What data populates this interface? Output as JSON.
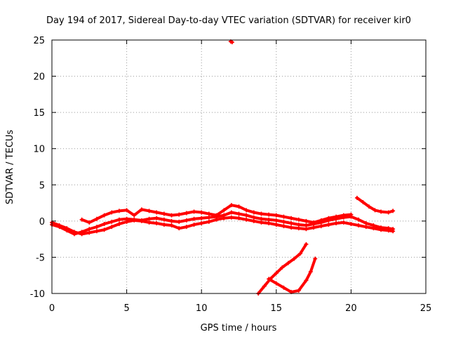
{
  "chart_data": {
    "type": "scatter",
    "title": "Day 194 of 2017, Sidereal Day-to-day VTEC variation (SDTVAR) for receiver kir0",
    "xlabel": "GPS time / hours",
    "ylabel": "SDTVAR / TECUs",
    "xlim": [
      0,
      25
    ],
    "ylim": [
      -10,
      25
    ],
    "xticks": [
      0,
      5,
      10,
      15,
      20,
      25
    ],
    "yticks": [
      -10,
      -5,
      0,
      5,
      10,
      15,
      20,
      25
    ],
    "grid": true,
    "legend": "none",
    "color": "#ff0000",
    "series": [
      {
        "values": [
          [
            0,
            -0.5
          ],
          [
            0.5,
            -0.8
          ],
          [
            1,
            -1.3
          ],
          [
            1.5,
            -1.8
          ],
          [
            2,
            -1.5
          ],
          [
            2.5,
            -1.1
          ],
          [
            3,
            -0.8
          ],
          [
            3.5,
            -0.4
          ],
          [
            4,
            -0.1
          ],
          [
            4.5,
            0.2
          ],
          [
            5,
            0.3
          ],
          [
            5.5,
            0.2
          ],
          [
            6,
            0.1
          ],
          [
            6.5,
            0.3
          ],
          [
            7,
            0.4
          ],
          [
            7.5,
            0.2
          ],
          [
            8,
            0.0
          ],
          [
            8.5,
            -0.1
          ],
          [
            9,
            0.1
          ],
          [
            9.5,
            0.3
          ],
          [
            10,
            0.4
          ],
          [
            10.5,
            0.5
          ],
          [
            11,
            0.6
          ],
          [
            11.5,
            0.8
          ],
          [
            12,
            1.2
          ],
          [
            12.5,
            1.0
          ],
          [
            13,
            0.8
          ],
          [
            13.5,
            0.5
          ],
          [
            14,
            0.3
          ],
          [
            14.5,
            0.2
          ],
          [
            15,
            0.1
          ],
          [
            15.5,
            -0.1
          ],
          [
            16,
            -0.3
          ],
          [
            16.5,
            -0.5
          ],
          [
            17,
            -0.6
          ],
          [
            17.5,
            -0.4
          ],
          [
            18,
            -0.2
          ],
          [
            18.5,
            0.1
          ],
          [
            19,
            0.3
          ],
          [
            19.5,
            0.5
          ],
          [
            20,
            0.6
          ],
          [
            20.5,
            0.2
          ],
          [
            21,
            -0.3
          ],
          [
            21.5,
            -0.6
          ],
          [
            22,
            -0.9
          ],
          [
            22.5,
            -1.0
          ],
          [
            22.8,
            -1.1
          ]
        ]
      },
      {
        "values": [
          [
            0,
            -0.2
          ],
          [
            0.5,
            -0.6
          ],
          [
            1,
            -1.0
          ],
          [
            1.5,
            -1.5
          ],
          [
            2,
            -1.8
          ],
          [
            2.5,
            -1.6
          ],
          [
            3,
            -1.4
          ],
          [
            3.5,
            -1.2
          ],
          [
            4,
            -0.8
          ],
          [
            4.5,
            -0.4
          ],
          [
            5,
            -0.1
          ],
          [
            5.5,
            0.1
          ],
          [
            6,
            0.0
          ],
          [
            6.5,
            -0.2
          ],
          [
            7,
            -0.3
          ],
          [
            7.5,
            -0.5
          ],
          [
            8,
            -0.6
          ],
          [
            8.5,
            -1.0
          ],
          [
            9,
            -0.8
          ],
          [
            9.5,
            -0.5
          ],
          [
            10,
            -0.3
          ],
          [
            10.5,
            -0.1
          ],
          [
            11,
            0.2
          ],
          [
            11.5,
            0.4
          ],
          [
            12,
            0.5
          ],
          [
            12.5,
            0.4
          ],
          [
            13,
            0.2
          ],
          [
            13.5,
            0.0
          ],
          [
            14,
            -0.2
          ],
          [
            14.5,
            -0.3
          ],
          [
            15,
            -0.5
          ],
          [
            15.5,
            -0.7
          ],
          [
            16,
            -0.9
          ],
          [
            16.5,
            -1.0
          ],
          [
            17,
            -1.1
          ],
          [
            17.5,
            -0.9
          ],
          [
            18,
            -0.7
          ],
          [
            18.5,
            -0.5
          ],
          [
            19,
            -0.3
          ],
          [
            19.5,
            -0.2
          ],
          [
            20,
            -0.4
          ],
          [
            20.5,
            -0.6
          ],
          [
            21,
            -0.8
          ],
          [
            21.5,
            -1.0
          ],
          [
            22,
            -1.2
          ],
          [
            22.5,
            -1.3
          ],
          [
            22.8,
            -1.4
          ]
        ]
      },
      {
        "values": [
          [
            2,
            0.2
          ],
          [
            2.5,
            -0.2
          ],
          [
            3,
            0.3
          ],
          [
            3.5,
            0.8
          ],
          [
            4,
            1.2
          ],
          [
            4.5,
            1.4
          ],
          [
            5,
            1.5
          ],
          [
            5.5,
            0.8
          ],
          [
            6,
            1.6
          ],
          [
            6.5,
            1.4
          ],
          [
            7,
            1.2
          ],
          [
            7.5,
            1.0
          ],
          [
            8,
            0.8
          ],
          [
            8.5,
            0.9
          ],
          [
            9,
            1.1
          ],
          [
            9.5,
            1.3
          ],
          [
            10,
            1.2
          ],
          [
            10.5,
            1.0
          ],
          [
            11,
            0.8
          ],
          [
            11.5,
            1.5
          ],
          [
            12,
            2.2
          ],
          [
            12.5,
            2.0
          ],
          [
            13,
            1.5
          ],
          [
            13.5,
            1.2
          ],
          [
            14,
            1.0
          ],
          [
            14.5,
            0.9
          ],
          [
            15,
            0.8
          ],
          [
            15.5,
            0.6
          ],
          [
            16,
            0.4
          ],
          [
            16.5,
            0.2
          ],
          [
            17,
            0.0
          ],
          [
            17.5,
            -0.2
          ],
          [
            18,
            0.1
          ],
          [
            18.5,
            0.4
          ],
          [
            19,
            0.6
          ],
          [
            19.5,
            0.8
          ],
          [
            20,
            0.9
          ]
        ]
      },
      {
        "values": [
          [
            20.4,
            3.2
          ],
          [
            20.8,
            2.6
          ],
          [
            21.2,
            2.0
          ],
          [
            21.6,
            1.5
          ],
          [
            22,
            1.3
          ],
          [
            22.5,
            1.2
          ],
          [
            22.8,
            1.4
          ]
        ]
      },
      {
        "values": [
          [
            13.8,
            -10.0
          ],
          [
            14.2,
            -9.0
          ],
          [
            14.6,
            -8.0
          ],
          [
            15,
            -7.2
          ],
          [
            15.4,
            -6.4
          ],
          [
            15.8,
            -5.8
          ],
          [
            16.2,
            -5.2
          ],
          [
            16.6,
            -4.5
          ],
          [
            17,
            -3.2
          ]
        ]
      },
      {
        "values": [
          [
            14.5,
            -8.0
          ],
          [
            15,
            -8.6
          ],
          [
            15.5,
            -9.2
          ],
          [
            16,
            -9.8
          ],
          [
            16.5,
            -9.6
          ],
          [
            17,
            -8.2
          ],
          [
            17.3,
            -7.0
          ],
          [
            17.6,
            -5.2
          ]
        ]
      },
      {
        "values": [
          [
            11.95,
            24.8
          ],
          [
            12.05,
            24.7
          ]
        ]
      }
    ]
  }
}
